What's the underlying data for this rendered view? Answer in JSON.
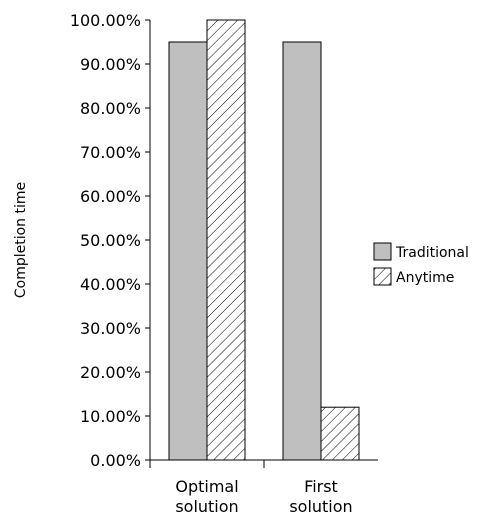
{
  "chart_data": {
    "type": "bar",
    "title": "",
    "xlabel": "",
    "ylabel": "Completion time",
    "ylim": [
      0,
      100
    ],
    "y_ticks": [
      "0.00%",
      "10.00%",
      "20.00%",
      "30.00%",
      "40.00%",
      "50.00%",
      "60.00%",
      "70.00%",
      "80.00%",
      "90.00%",
      "100.00%"
    ],
    "categories": [
      [
        "Optimal",
        "solution"
      ],
      [
        "First",
        "solution"
      ]
    ],
    "series": [
      {
        "name": "Traditional",
        "values": [
          95,
          95
        ],
        "fill": "#bfbfbf",
        "pattern": "solid"
      },
      {
        "name": "Anytime",
        "values": [
          100,
          12
        ],
        "fill": "#ffffff",
        "pattern": "diagonal-hatch"
      }
    ],
    "grid": false,
    "legend": "right"
  }
}
